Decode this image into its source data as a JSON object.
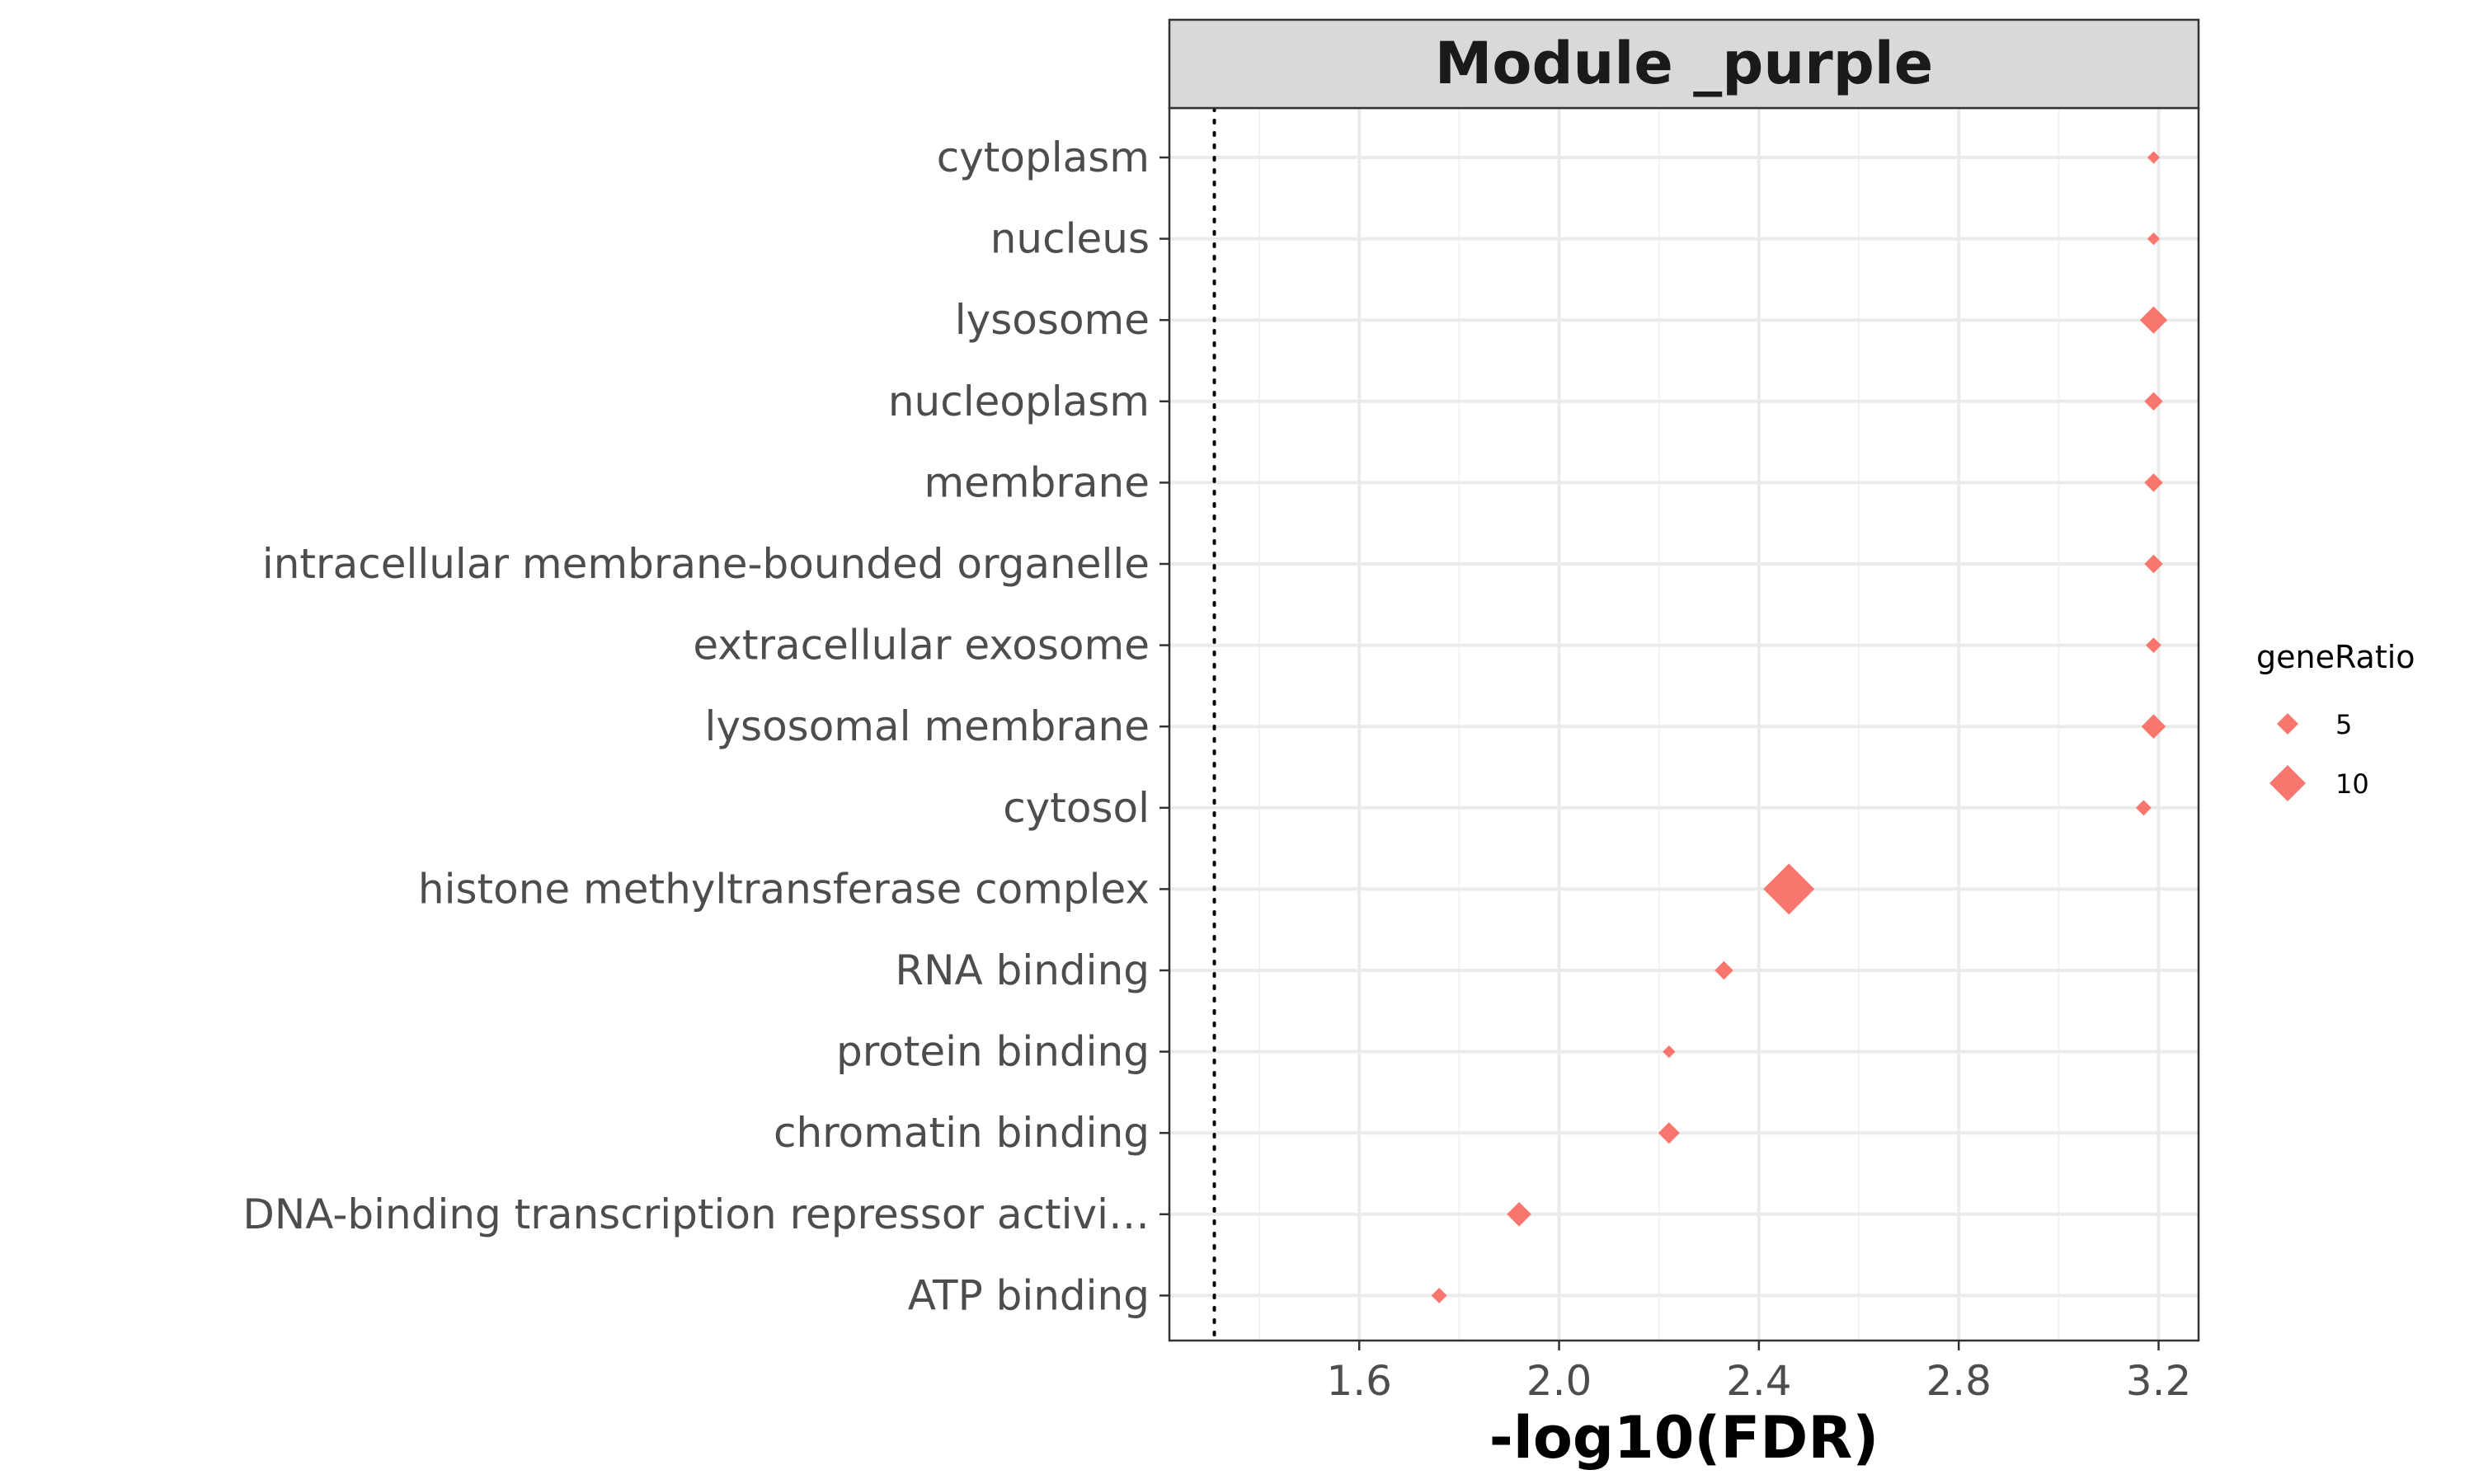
{
  "chart_data": {
    "type": "scatter",
    "title": "Module _purple",
    "xlabel": "-log10(FDR)",
    "ylabel": "",
    "xlim": [
      1.22,
      3.28
    ],
    "xticks": [
      1.6,
      2.0,
      2.4,
      2.8,
      3.2
    ],
    "xtick_labels": [
      "1.6",
      "2.0",
      "2.4",
      "2.8",
      "3.2"
    ],
    "reference_line_x": 1.31,
    "marker": "diamond",
    "color": "#F8766D",
    "categories": [
      "cytoplasm",
      "nucleus",
      "lysosome",
      "nucleoplasm",
      "membrane",
      "intracellular membrane-bounded organelle",
      "extracellular exosome",
      "lysosomal membrane",
      "cytosol",
      "histone methyltransferase complex",
      "RNA binding",
      "protein binding",
      "chromatin binding",
      "DNA-binding transcription repressor activi…",
      "ATP binding"
    ],
    "points": [
      {
        "category": "cytoplasm",
        "x": 3.19,
        "geneRatio": 2
      },
      {
        "category": "nucleus",
        "x": 3.19,
        "geneRatio": 2
      },
      {
        "category": "lysosome",
        "x": 3.19,
        "geneRatio": 7
      },
      {
        "category": "nucleoplasm",
        "x": 3.19,
        "geneRatio": 4
      },
      {
        "category": "membrane",
        "x": 3.19,
        "geneRatio": 4
      },
      {
        "category": "intracellular membrane-bounded organelle",
        "x": 3.19,
        "geneRatio": 4
      },
      {
        "category": "extracellular exosome",
        "x": 3.19,
        "geneRatio": 3
      },
      {
        "category": "lysosomal membrane",
        "x": 3.19,
        "geneRatio": 6
      },
      {
        "category": "cytosol",
        "x": 3.17,
        "geneRatio": 3
      },
      {
        "category": "histone methyltransferase complex",
        "x": 2.46,
        "geneRatio": 15
      },
      {
        "category": "RNA binding",
        "x": 2.33,
        "geneRatio": 4
      },
      {
        "category": "protein binding",
        "x": 2.22,
        "geneRatio": 2
      },
      {
        "category": "chromatin binding",
        "x": 2.22,
        "geneRatio": 5
      },
      {
        "category": "DNA-binding transcription repressor activi…",
        "x": 1.92,
        "geneRatio": 6
      },
      {
        "category": "ATP binding",
        "x": 1.76,
        "geneRatio": 3
      }
    ],
    "legend": {
      "title": "geneRatio",
      "position": "right",
      "entries": [
        {
          "label": "5",
          "geneRatio": 5
        },
        {
          "label": "10",
          "geneRatio": 10
        }
      ]
    },
    "grid": true
  }
}
